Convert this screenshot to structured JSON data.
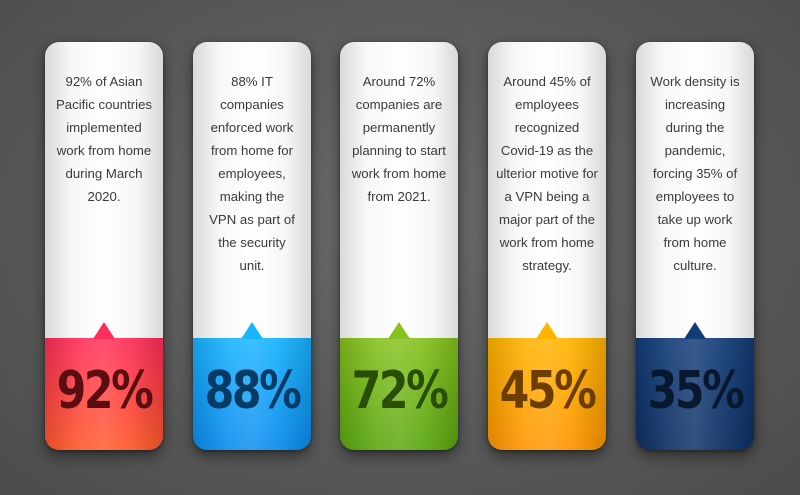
{
  "cards": [
    {
      "text": "92% of Asian Pacific countries implemented work from home during March 2020.",
      "percent": "92%",
      "color_top": "#ff2d5a",
      "color_bottom": "#ff5a2a",
      "text_color": "#5a0e12"
    },
    {
      "text": "88% IT companies enforced work from home for employees, making the VPN as part of the security unit.",
      "percent": "88%",
      "color_top": "#18b4ff",
      "color_bottom": "#0a8cf0",
      "text_color": "#063b66"
    },
    {
      "text": "Around 72% companies are permanently planning to start work from home from 2021.",
      "percent": "72%",
      "color_top": "#86c21e",
      "color_bottom": "#5aa610",
      "text_color": "#2a4d08"
    },
    {
      "text": "Around 45% of employees recognized Covid-19 as the ulterior motive for a VPN being a major part of the work from home strategy.",
      "percent": "45%",
      "color_top": "#ffb400",
      "color_bottom": "#ff9400",
      "text_color": "#6b3d00"
    },
    {
      "text": "Work density is increasing during the pandemic, forcing 35% of employees to take up work from home culture.",
      "percent": "35%",
      "color_top": "#123c78",
      "color_bottom": "#0c2f63",
      "text_color": "#07182f"
    }
  ]
}
